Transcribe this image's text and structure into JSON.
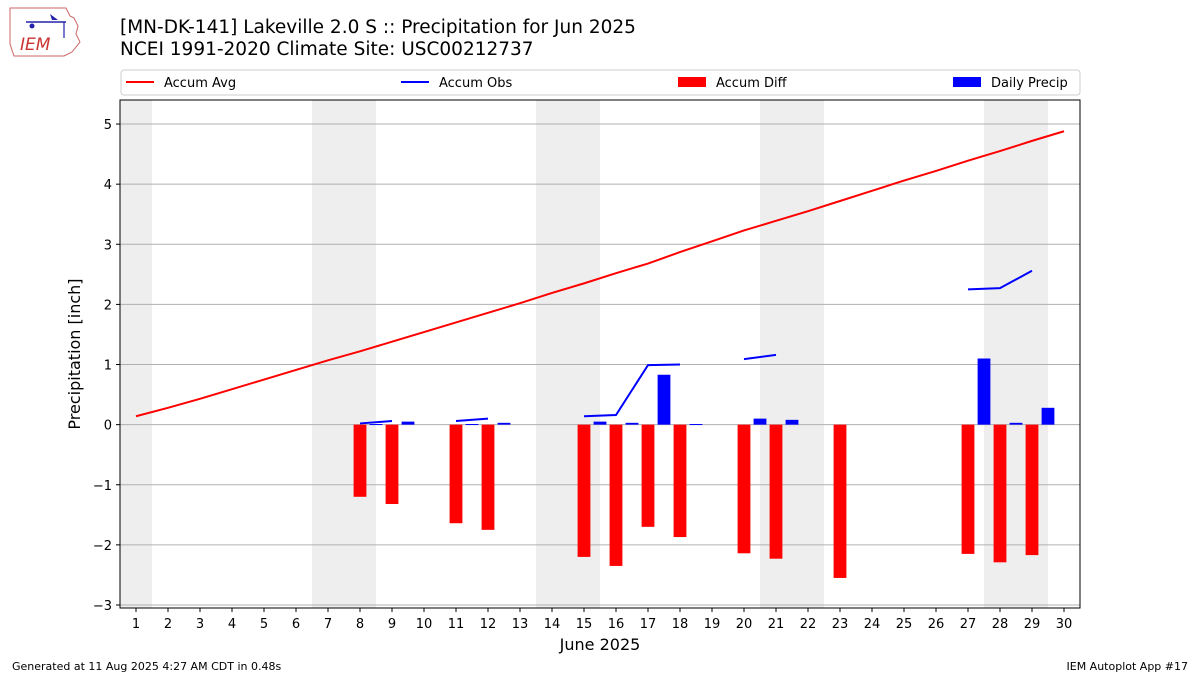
{
  "header": {
    "title_line1": "[MN-DK-141] Lakeville 2.0 S :: Precipitation for Jun 2025",
    "title_line2": "NCEI 1991-2020 Climate Site: USC00212737",
    "logo_text": "IEM"
  },
  "footer": {
    "generated": "Generated at 11 Aug 2025 4:27 AM CDT in 0.48s",
    "app": "IEM Autoplot App #17"
  },
  "colors": {
    "accum_avg": "#ff0000",
    "accum_obs": "#0000ff",
    "accum_diff": "#ff0000",
    "daily_precip": "#0000ff",
    "weekend_shade": "#eeeeee",
    "grid": "#b0b0b0"
  },
  "chart_data": {
    "type": "bar",
    "xlabel": "June 2025",
    "ylabel": "Precipitation [inch]",
    "xlim": [
      0.5,
      30.5
    ],
    "ylim": [
      -3.05,
      5.4
    ],
    "yticks": [
      -3,
      -2,
      -1,
      0,
      1,
      2,
      3,
      4,
      5
    ],
    "ytick_labels": [
      "−3",
      "−2",
      "−1",
      "0",
      "1",
      "2",
      "3",
      "4",
      "5"
    ],
    "xticks": [
      1,
      2,
      3,
      4,
      5,
      6,
      7,
      8,
      9,
      10,
      11,
      12,
      13,
      14,
      15,
      16,
      17,
      18,
      19,
      20,
      21,
      22,
      23,
      24,
      25,
      26,
      27,
      28,
      29,
      30
    ],
    "grid": "y",
    "legend_position": "top",
    "weekend_spans": [
      [
        0.5,
        1.5
      ],
      [
        6.5,
        8.5
      ],
      [
        13.5,
        15.5
      ],
      [
        20.5,
        22.5
      ],
      [
        27.5,
        29.5
      ]
    ],
    "accum_avg": {
      "name": "Accum Avg",
      "x": [
        1,
        2,
        3,
        4,
        5,
        6,
        7,
        8,
        9,
        10,
        11,
        12,
        13,
        14,
        15,
        16,
        17,
        18,
        19,
        20,
        21,
        22,
        23,
        24,
        25,
        26,
        27,
        28,
        29,
        30
      ],
      "y": [
        0.14,
        0.28,
        0.43,
        0.59,
        0.75,
        0.91,
        1.07,
        1.22,
        1.38,
        1.54,
        1.7,
        1.86,
        2.02,
        2.19,
        2.35,
        2.52,
        2.68,
        2.87,
        3.05,
        3.23,
        3.39,
        3.55,
        3.72,
        3.89,
        4.06,
        4.22,
        4.39,
        4.55,
        4.72,
        4.88
      ]
    },
    "accum_obs": {
      "name": "Accum Obs",
      "segments": [
        [
          [
            8,
            0.02
          ],
          [
            9,
            0.06
          ]
        ],
        [
          [
            11,
            0.06
          ],
          [
            12,
            0.1
          ]
        ],
        [
          [
            15,
            0.14
          ],
          [
            16,
            0.16
          ],
          [
            17,
            0.99
          ],
          [
            18,
            1.0
          ]
        ],
        [
          [
            20,
            1.09
          ],
          [
            21,
            1.16
          ]
        ],
        [
          [
            27,
            2.25
          ],
          [
            28,
            2.27
          ],
          [
            29,
            2.56
          ]
        ]
      ]
    },
    "accum_diff": {
      "name": "Accum Diff",
      "x": [
        8,
        9,
        11,
        12,
        15,
        16,
        17,
        18,
        20,
        21,
        23,
        27,
        28,
        29
      ],
      "y": [
        -1.2,
        -1.32,
        -1.64,
        -1.75,
        -2.2,
        -2.35,
        -1.7,
        -1.87,
        -2.14,
        -2.23,
        -2.55,
        -2.15,
        -2.29,
        -2.17
      ]
    },
    "daily_precip": {
      "name": "Daily Precip",
      "x": [
        8,
        9,
        11,
        12,
        15,
        16,
        17,
        18,
        20,
        21,
        28,
        27,
        29
      ],
      "y": [
        0.01,
        0.05,
        0.01,
        0.03,
        0.05,
        0.03,
        0.83,
        0.01,
        0.1,
        0.08,
        0.03,
        1.1,
        0.28
      ]
    }
  }
}
